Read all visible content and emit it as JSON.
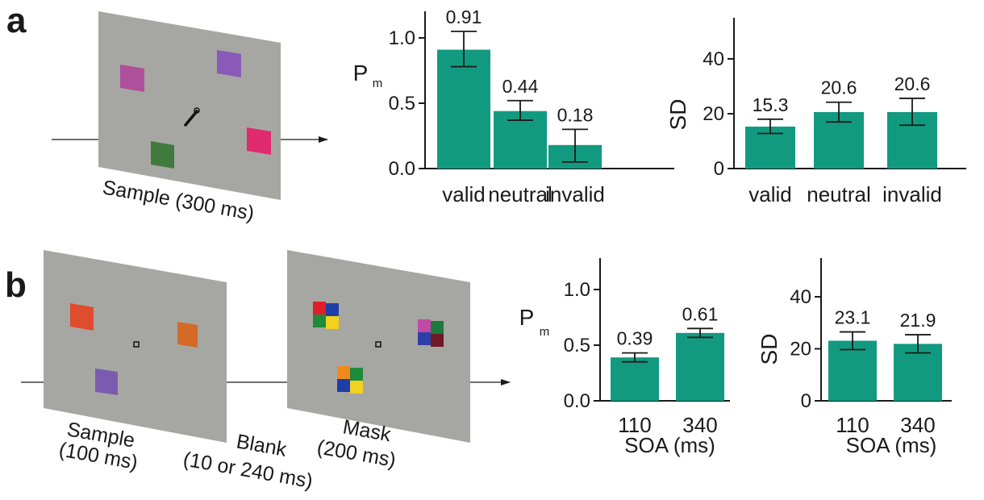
{
  "panels": {
    "a": "a",
    "b": "b"
  },
  "colors": {
    "bar": "#129a80",
    "screen": "#a6a7a3"
  },
  "stimulus_a": {
    "caption": "Sample (300 ms)"
  },
  "stimulus_b": {
    "sample_caption_1": "Sample",
    "sample_caption_2": "(100 ms)",
    "blank_caption_1": "Blank",
    "blank_caption_2": "(10 or 240 ms)",
    "mask_caption_1": "Mask",
    "mask_caption_2": "(200 ms)"
  },
  "chart_data": [
    {
      "id": "a-pm",
      "type": "bar",
      "categories": [
        "valid",
        "neutral",
        "invalid"
      ],
      "values": [
        0.91,
        0.44,
        0.18
      ],
      "value_labels": [
        "0.91",
        "0.44",
        "0.18"
      ],
      "error": [
        [
          0.78,
          1.05
        ],
        [
          0.37,
          0.52
        ],
        [
          0.05,
          0.3
        ]
      ],
      "ylabel": "P",
      "ylabel_sub": "m",
      "xlabel": "",
      "ylim": [
        0,
        1.0
      ],
      "yticks": [
        "0.0",
        "0.5",
        "1.0"
      ]
    },
    {
      "id": "a-sd",
      "type": "bar",
      "categories": [
        "valid",
        "neutral",
        "invalid"
      ],
      "values": [
        15.3,
        20.6,
        20.6
      ],
      "value_labels": [
        "15.3",
        "20.6",
        "20.6"
      ],
      "error": [
        [
          12.8,
          18.0
        ],
        [
          17.0,
          24.2
        ],
        [
          15.8,
          25.6
        ]
      ],
      "ylabel": "SD",
      "xlabel": "",
      "ylim": [
        0,
        40
      ],
      "yticks": [
        "0",
        "20",
        "40"
      ]
    },
    {
      "id": "b-pm",
      "type": "bar",
      "categories": [
        "110",
        "340"
      ],
      "values": [
        0.39,
        0.61
      ],
      "value_labels": [
        "0.39",
        "0.61"
      ],
      "error": [
        [
          0.35,
          0.43
        ],
        [
          0.57,
          0.65
        ]
      ],
      "ylabel": "P",
      "ylabel_sub": "m",
      "xlabel": "SOA (ms)",
      "ylim": [
        0,
        1.0
      ],
      "yticks": [
        "0.0",
        "0.5",
        "1.0"
      ]
    },
    {
      "id": "b-sd",
      "type": "bar",
      "categories": [
        "110",
        "340"
      ],
      "values": [
        23.1,
        21.9
      ],
      "value_labels": [
        "23.1",
        "21.9"
      ],
      "error": [
        [
          19.7,
          26.5
        ],
        [
          18.4,
          25.4
        ]
      ],
      "ylabel": "SD",
      "xlabel": "SOA (ms)",
      "ylim": [
        0,
        40
      ],
      "yticks": [
        "0",
        "20",
        "40"
      ]
    }
  ]
}
